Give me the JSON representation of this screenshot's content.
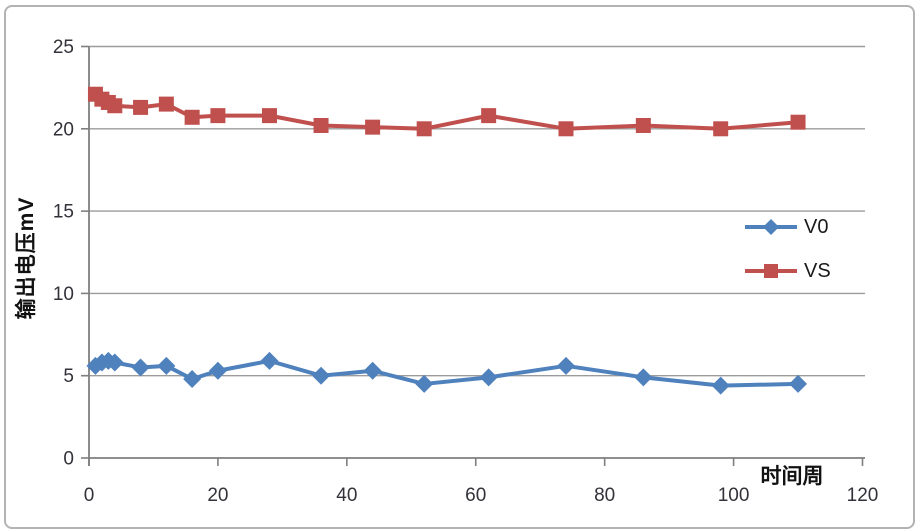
{
  "chart_data": {
    "type": "line",
    "title": "",
    "xlabel": "时间周",
    "ylabel": "输出电压mV",
    "x": [
      1,
      2,
      3,
      4,
      8,
      12,
      16,
      20,
      28,
      36,
      44,
      52,
      62,
      74,
      86,
      98,
      110
    ],
    "series": [
      {
        "name": "V0",
        "color": "#4F81BD",
        "marker": "diamond",
        "values": [
          5.6,
          5.8,
          5.9,
          5.8,
          5.5,
          5.6,
          4.8,
          5.3,
          5.9,
          5.0,
          5.3,
          4.5,
          4.9,
          5.6,
          4.9,
          4.4,
          4.5
        ]
      },
      {
        "name": "VS",
        "color": "#C0504D",
        "marker": "square",
        "values": [
          22.1,
          21.8,
          21.6,
          21.4,
          21.3,
          21.5,
          20.7,
          20.8,
          20.8,
          20.2,
          20.1,
          20.0,
          20.8,
          20.0,
          20.2,
          20.0,
          20.4
        ]
      }
    ],
    "xlim": [
      0,
      120
    ],
    "ylim": [
      0,
      25
    ],
    "xticks": [
      0,
      20,
      40,
      60,
      80,
      100,
      120
    ],
    "yticks": [
      0,
      5,
      10,
      15,
      20,
      25
    ],
    "grid": "horizontal",
    "legend_position": "right-middle"
  },
  "colors": {
    "gridline": "#9b9b9b",
    "axis": "#7f7f7f",
    "tick_label": "#32323a",
    "frame_border": "#b3b3b3",
    "background": "#ffffff"
  }
}
